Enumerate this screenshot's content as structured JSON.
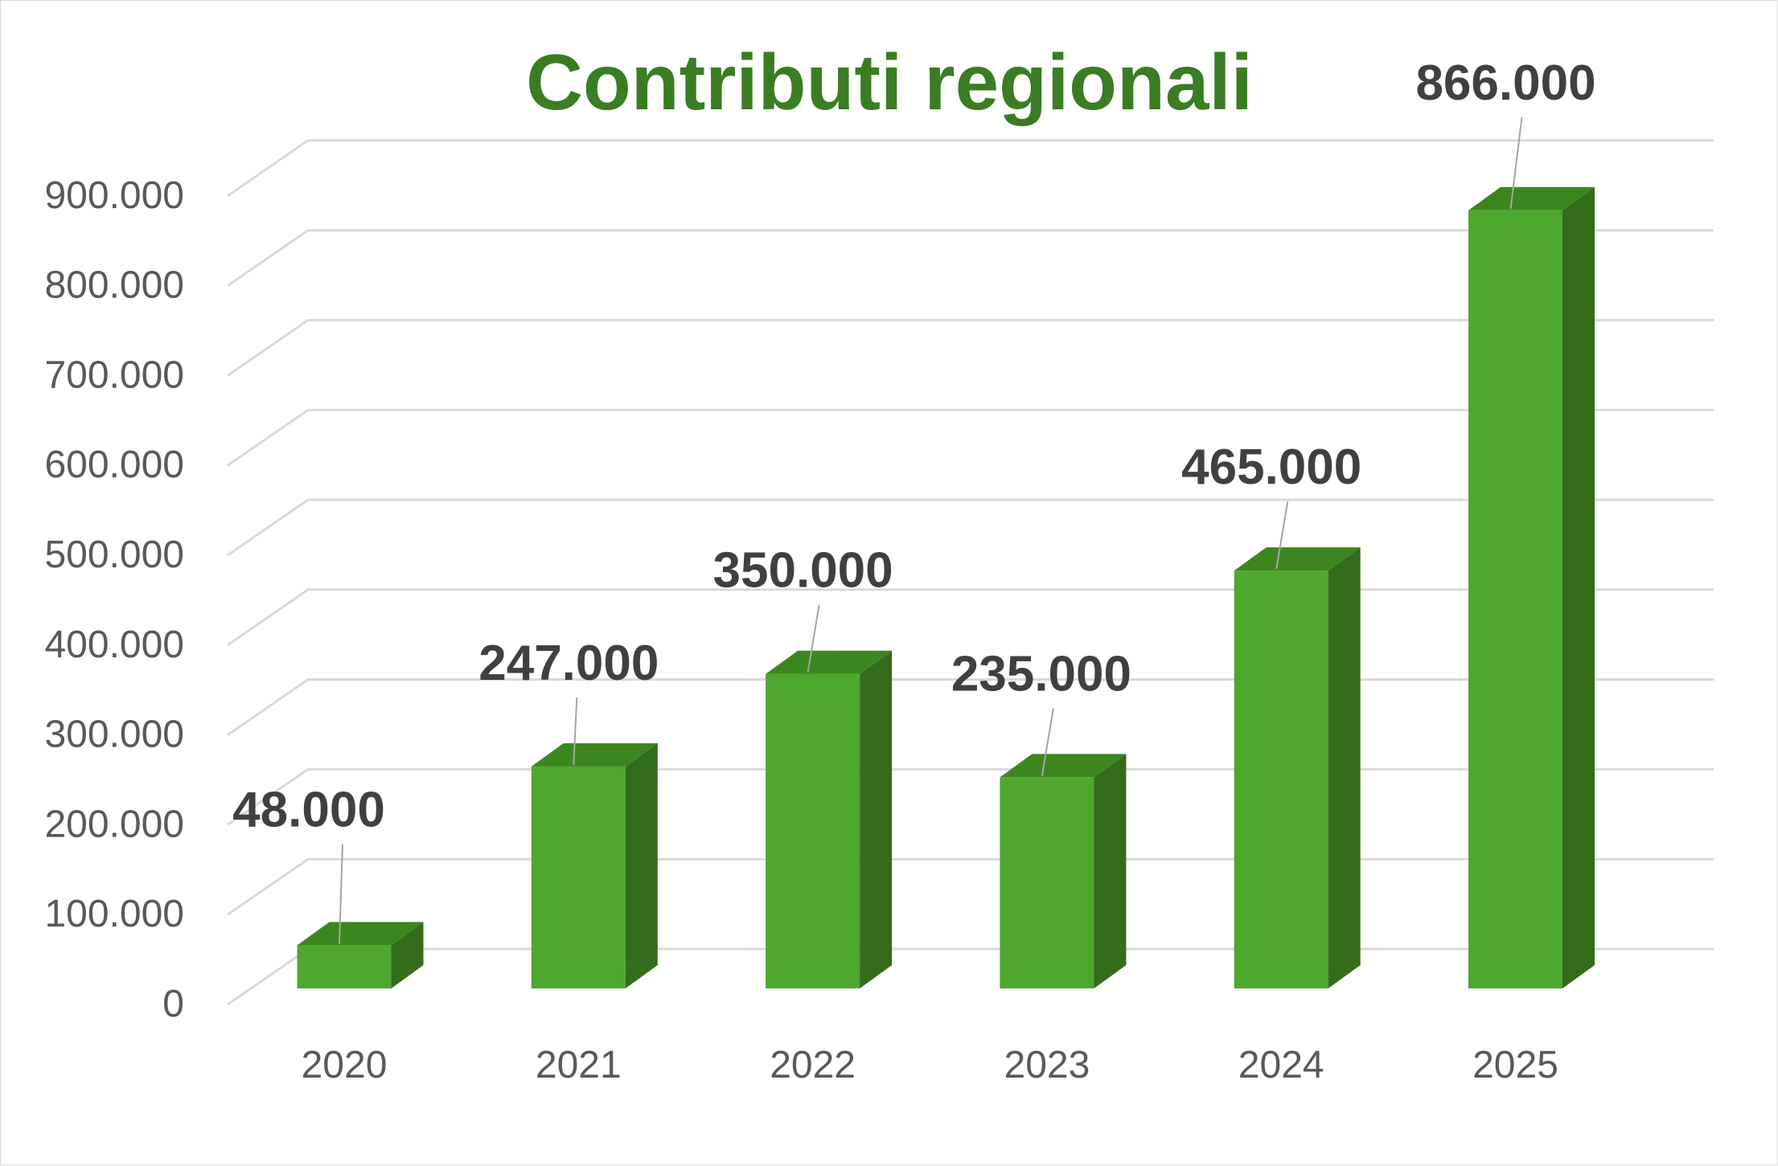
{
  "chart_data": {
    "type": "bar",
    "title": "Contributi regionali",
    "categories": [
      "2020",
      "2021",
      "2022",
      "2023",
      "2024",
      "2025"
    ],
    "values": [
      48000,
      247000,
      350000,
      235000,
      465000,
      866000
    ],
    "data_labels": [
      "48.000",
      "247.000",
      "350.000",
      "235.000",
      "465.000",
      "866.000"
    ],
    "ylim": [
      0,
      900000
    ],
    "y_ticks": [
      0,
      100000,
      200000,
      300000,
      400000,
      500000,
      600000,
      700000,
      800000,
      900000
    ],
    "y_tick_labels": [
      "0",
      "100.000",
      "200.000",
      "300.000",
      "400.000",
      "500.000",
      "600.000",
      "700.000",
      "800.000",
      "900.000"
    ],
    "xlabel": "",
    "ylabel": "",
    "grid": true,
    "legend": "none",
    "style": "3d-column"
  },
  "colors": {
    "title": "#3a7d22",
    "bar_front": "#4ea72e",
    "bar_side": "#336d1c",
    "bar_top": "#3d861f",
    "gridline": "#d9d9d9",
    "leader_line": "#a6a6a6"
  }
}
